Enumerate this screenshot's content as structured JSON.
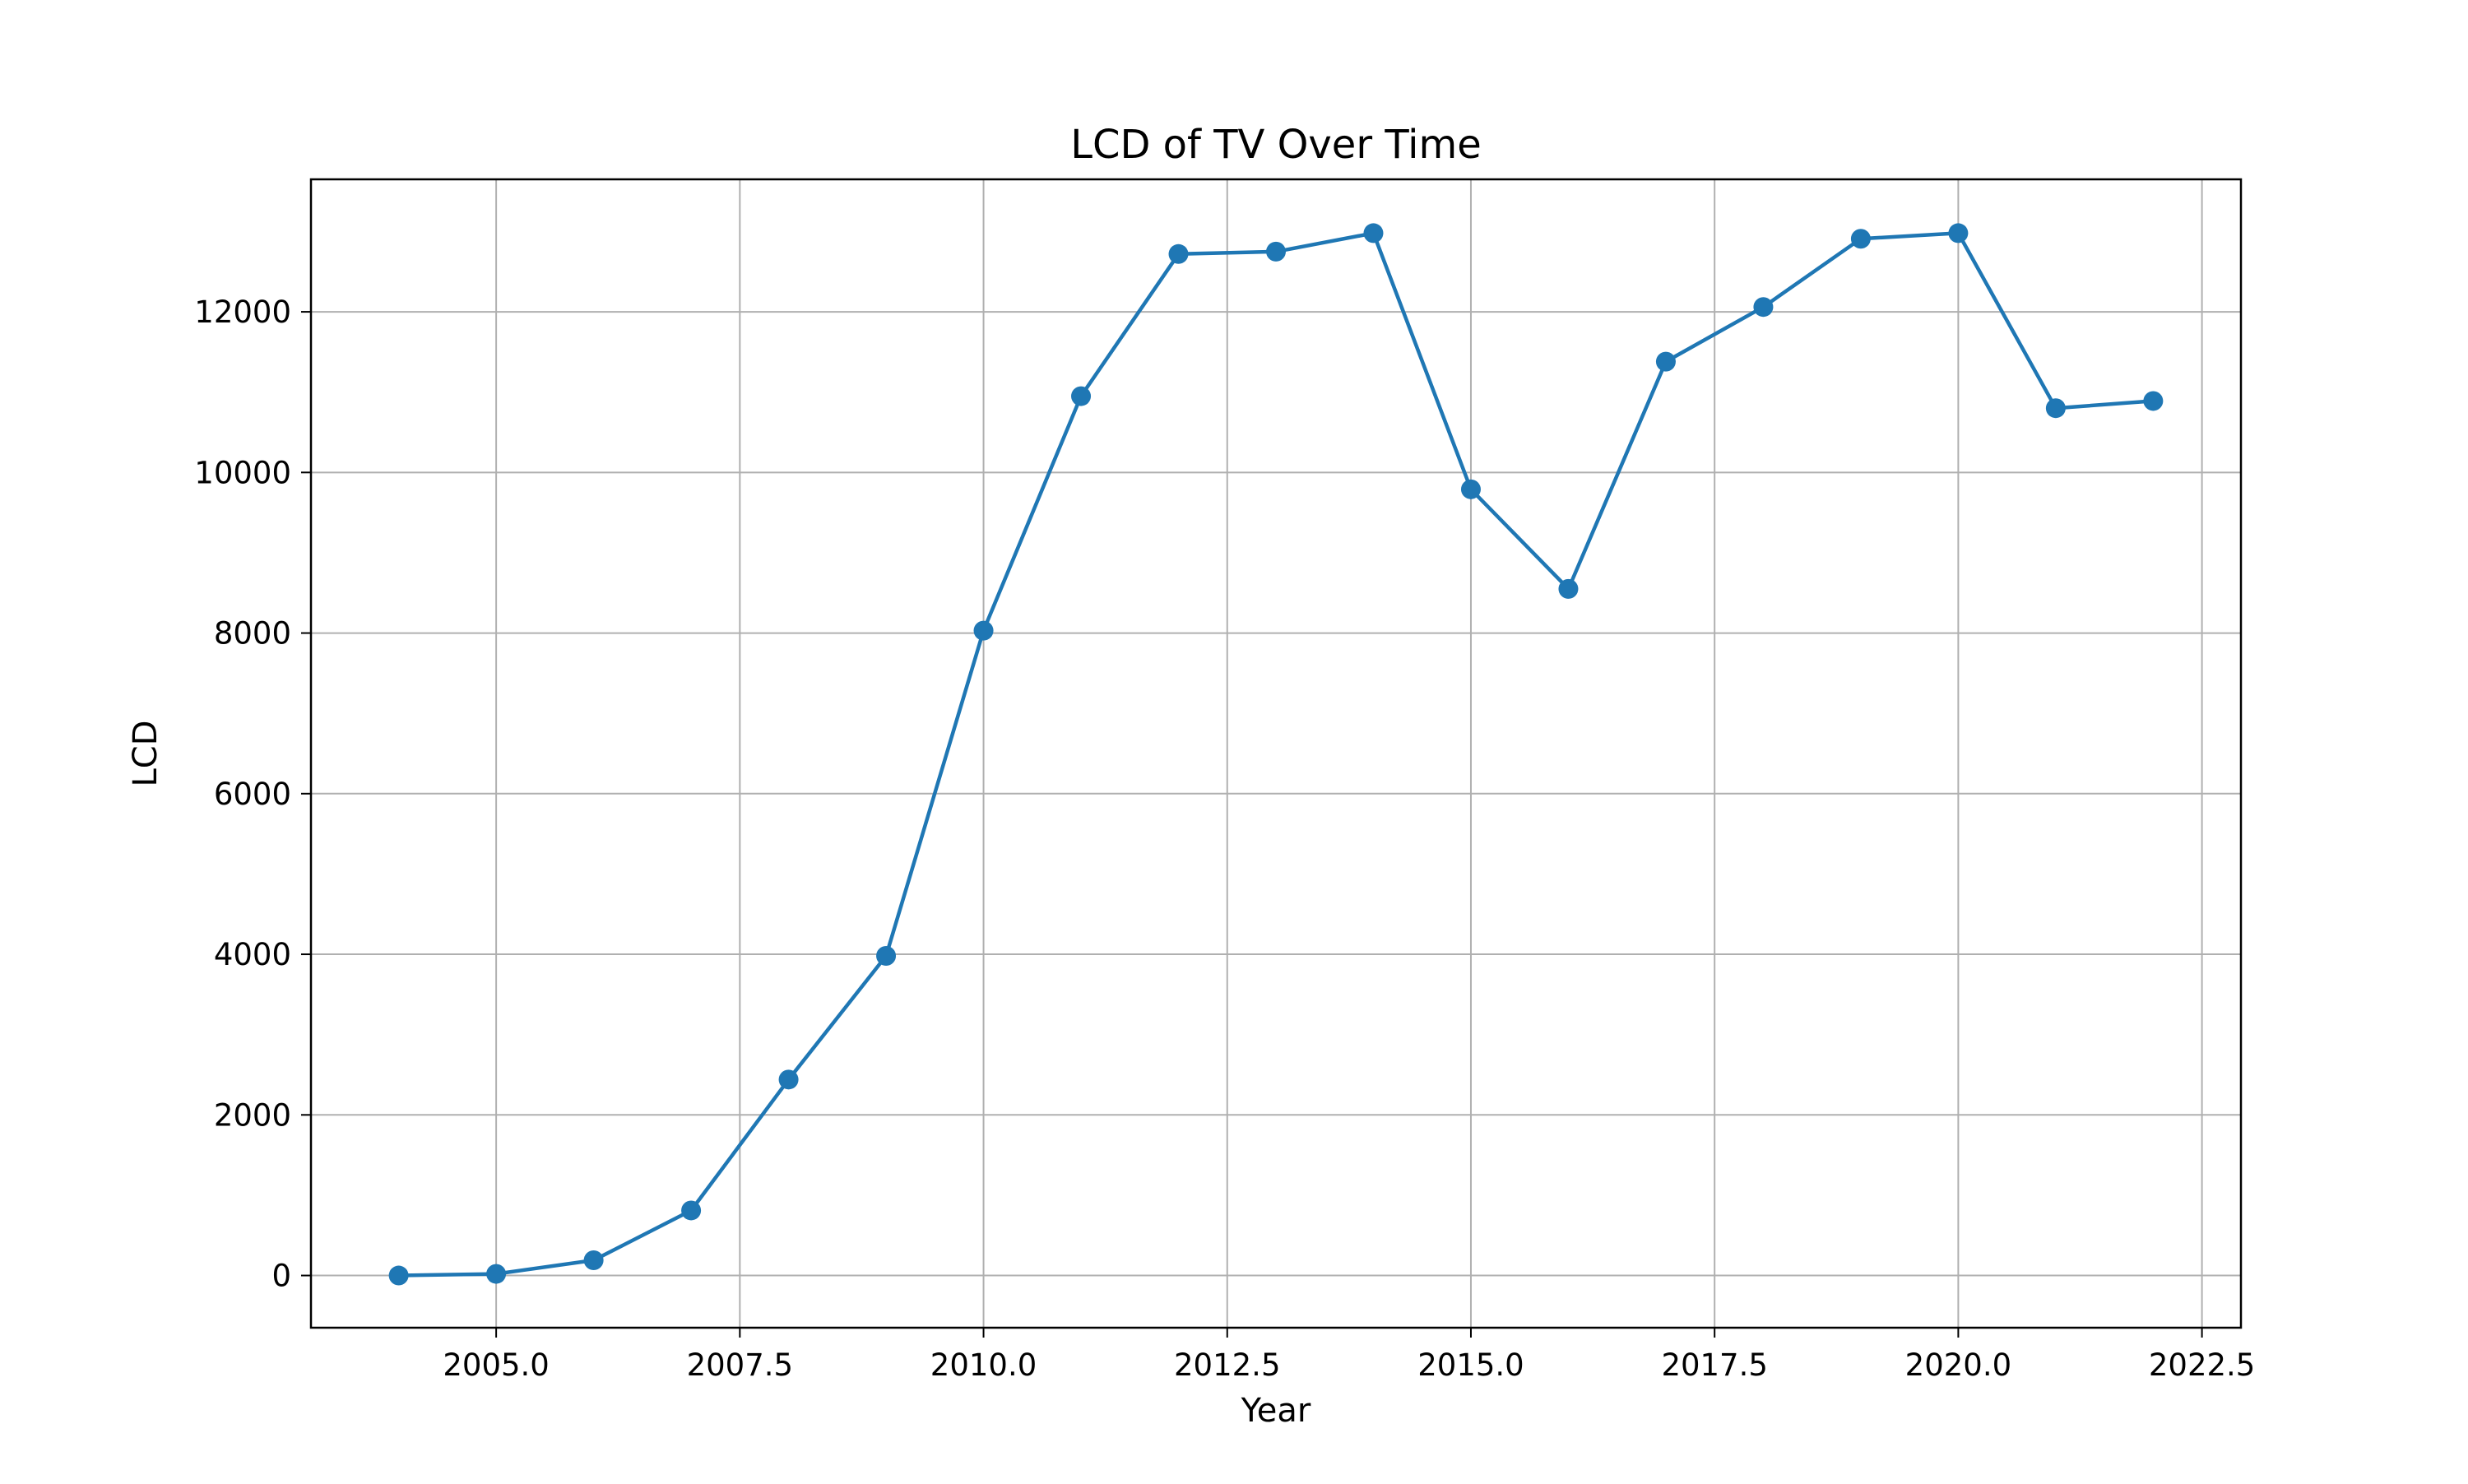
{
  "chart_data": {
    "type": "line",
    "title": "LCD of TV Over Time",
    "xlabel": "Year",
    "ylabel": "LCD",
    "xlim": [
      2003.1,
      2022.9
    ],
    "ylim": [
      -650,
      13650
    ],
    "xticks": [
      2005.0,
      2007.5,
      2010.0,
      2012.5,
      2015.0,
      2017.5,
      2020.0,
      2022.5
    ],
    "xtick_labels": [
      "2005.0",
      "2007.5",
      "2010.0",
      "2012.5",
      "2015.0",
      "2017.5",
      "2020.0",
      "2022.5"
    ],
    "yticks": [
      0,
      2000,
      4000,
      6000,
      8000,
      10000,
      12000
    ],
    "ytick_labels": [
      "0",
      "2000",
      "4000",
      "6000",
      "8000",
      "10000",
      "12000"
    ],
    "grid": true,
    "series": [
      {
        "color": "#1f77b4",
        "marker": "circle",
        "x": [
          2004,
          2005,
          2006,
          2007,
          2008,
          2009,
          2010,
          2011,
          2012,
          2013,
          2014,
          2015,
          2016,
          2017,
          2018,
          2019,
          2020,
          2021,
          2022
        ],
        "y": [
          0,
          20,
          190,
          810,
          2440,
          3980,
          8030,
          10950,
          12720,
          12750,
          12980,
          9790,
          8550,
          11380,
          12060,
          12910,
          12980,
          10800,
          10890
        ]
      }
    ]
  }
}
